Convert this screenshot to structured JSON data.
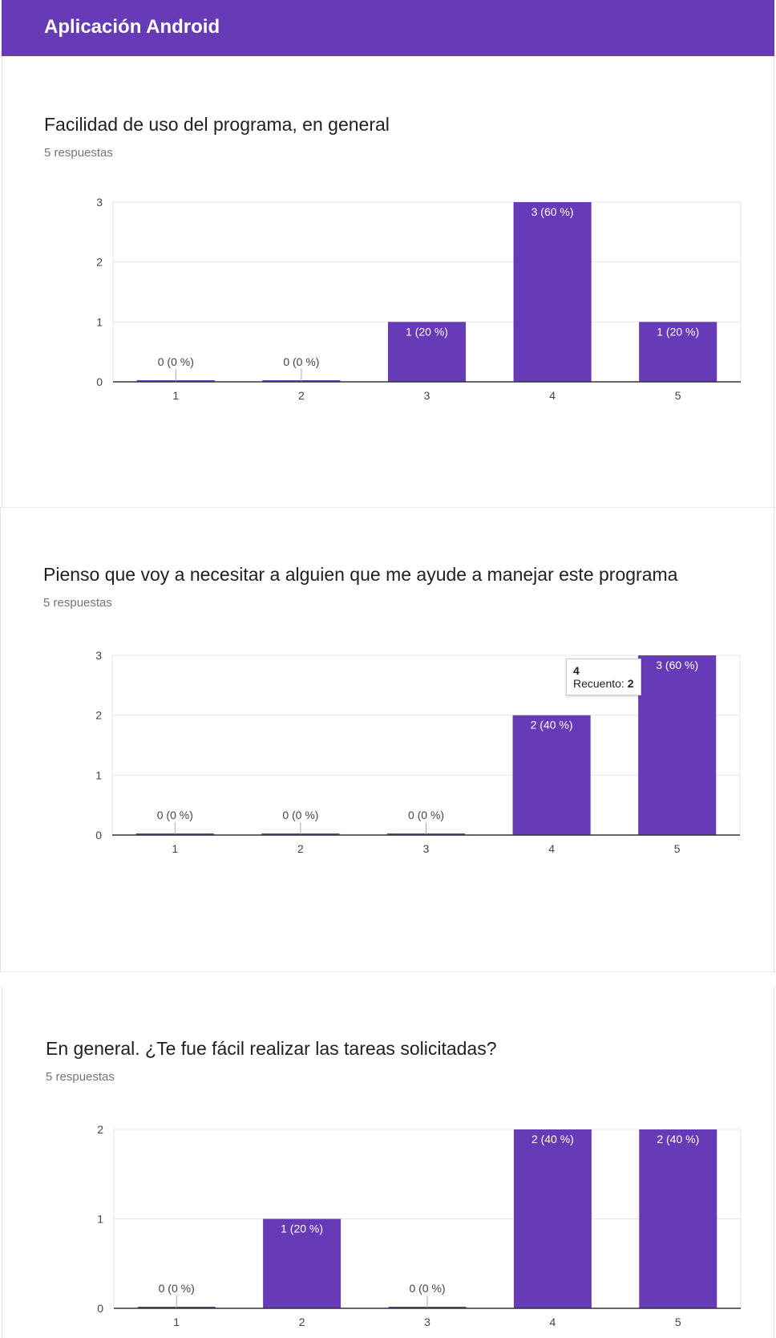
{
  "header": {
    "title": "Aplicación Android"
  },
  "accent": "#673ab7",
  "questions": [
    {
      "title": "Facilidad de uso del programa, en general",
      "responses": "5 respuestas",
      "chart_data": {
        "type": "bar",
        "categories": [
          "1",
          "2",
          "3",
          "4",
          "5"
        ],
        "values": [
          0,
          0,
          1,
          3,
          1
        ],
        "labels": [
          "0 (0 %)",
          "0 (0 %)",
          "1 (20 %)",
          "3 (60 %)",
          "1 (20 %)"
        ],
        "ylim": [
          0,
          3
        ],
        "yticks": [
          "0",
          "1",
          "2",
          "3"
        ],
        "grid": true,
        "color": "#673ab7"
      }
    },
    {
      "title": "Pienso que voy a necesitar a alguien que me ayude a manejar este programa",
      "responses": "5 respuestas",
      "chart_data": {
        "type": "bar",
        "categories": [
          "1",
          "2",
          "3",
          "4",
          "5"
        ],
        "values": [
          0,
          0,
          0,
          2,
          3
        ],
        "labels": [
          "0 (0 %)",
          "0 (0 %)",
          "0 (0 %)",
          "2 (40 %)",
          "3 (60 %)"
        ],
        "ylim": [
          0,
          3
        ],
        "yticks": [
          "0",
          "1",
          "2",
          "3"
        ],
        "grid": true,
        "color": "#673ab7"
      },
      "tooltip": {
        "category": "4",
        "label": "Recuento:",
        "value": "2"
      }
    },
    {
      "title": "En general. ¿Te fue fácil realizar las tareas solicitadas?",
      "responses": "5 respuestas",
      "chart_data": {
        "type": "bar",
        "categories": [
          "1",
          "2",
          "3",
          "4",
          "5"
        ],
        "values": [
          0,
          1,
          0,
          2,
          2
        ],
        "labels": [
          "0 (0 %)",
          "1 (20 %)",
          "0 (0 %)",
          "2 (40 %)",
          "2 (40 %)"
        ],
        "ylim": [
          0,
          2
        ],
        "yticks": [
          "0",
          "1",
          "2"
        ],
        "grid": true,
        "color": "#673ab7"
      }
    }
  ]
}
